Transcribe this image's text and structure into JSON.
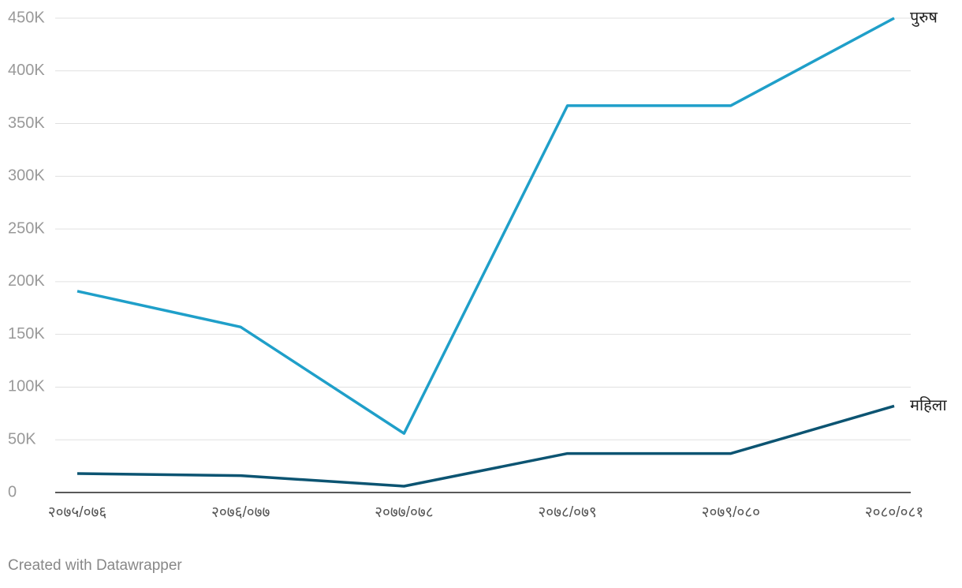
{
  "chart_data": {
    "type": "line",
    "categories": [
      "२०७५/०७६",
      "२०७६/०७७",
      "२०७७/०७८",
      "२०७८/०७९",
      "२०७९/०८०",
      "२०८०/०८१"
    ],
    "series": [
      {
        "name": "पुरुष",
        "color": "#1f9fc9",
        "values": [
          191000,
          157000,
          56000,
          367000,
          367000,
          450000
        ]
      },
      {
        "name": "महिला",
        "color": "#0c5472",
        "values": [
          18000,
          16000,
          6000,
          37000,
          37000,
          82000
        ]
      }
    ],
    "ylim": [
      0,
      450000
    ],
    "yticks": [
      0,
      {
        "value": 50000,
        "label": "50K"
      },
      {
        "value": 100000,
        "label": "100K"
      },
      {
        "value": 150000,
        "label": "150K"
      },
      {
        "value": 200000,
        "label": "200K"
      },
      {
        "value": 250000,
        "label": "250K"
      },
      {
        "value": 300000,
        "label": "300K"
      },
      {
        "value": 350000,
        "label": "350K"
      },
      {
        "value": 400000,
        "label": "400K"
      },
      {
        "value": 450000,
        "label": "450K"
      }
    ],
    "grid": true,
    "credit": "Created with Datawrapper"
  }
}
